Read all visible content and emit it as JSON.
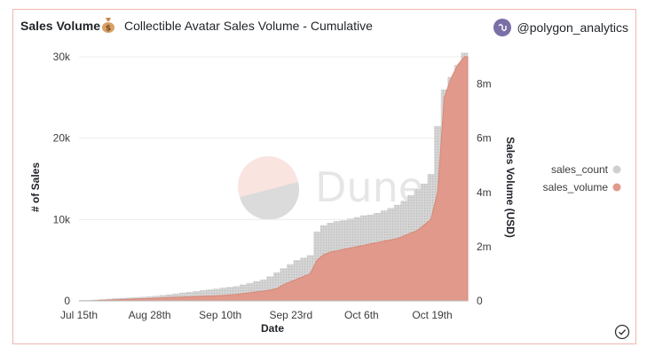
{
  "header": {
    "title": "Sales Volume",
    "subtitle": "Collectible Avatar Sales Volume - Cumulative",
    "author": "@polygon_analytics"
  },
  "watermark": "Dune",
  "colors": {
    "sales_count": "#cfcfcf",
    "sales_volume": "#e0998b",
    "border": "#f0b7ae"
  },
  "chart_data": {
    "type": "area",
    "title": "Collectible Avatar Sales Volume - Cumulative",
    "xlabel": "Date",
    "ylabel_left": "# of Sales",
    "ylabel_right": "Sales Volume (USD)",
    "x_ticks": [
      "Jul 15th",
      "Aug 28th",
      "Sep 10th",
      "Sep 23rd",
      "Oct 6th",
      "Oct 19th"
    ],
    "y_left_ticks": [
      "0",
      "10k",
      "20k",
      "30k"
    ],
    "y_left_range": [
      0,
      30000
    ],
    "y_right_ticks": [
      "0",
      "2m",
      "4m",
      "6m",
      "8m"
    ],
    "y_right_range": [
      0,
      9000000
    ],
    "legend_position": "right",
    "series": [
      {
        "name": "sales_count",
        "axis": "left",
        "style": "bar",
        "values": [
          100,
          100,
          150,
          200,
          250,
          300,
          350,
          400,
          450,
          500,
          550,
          600,
          700,
          800,
          900,
          1000,
          1100,
          1200,
          1300,
          1400,
          1500,
          1600,
          1700,
          1800,
          2000,
          2200,
          2400,
          2600,
          3000,
          3500,
          4000,
          4500,
          5000,
          5300,
          5600,
          8500,
          9300,
          9600,
          9800,
          9900,
          10100,
          10300,
          10500,
          10600,
          10800,
          11100,
          11400,
          11800,
          12300,
          13000,
          13700,
          14400,
          15600,
          21500,
          26000,
          27500,
          29000,
          30500
        ]
      },
      {
        "name": "sales_volume",
        "axis": "right",
        "style": "area",
        "values": [
          0,
          0,
          10000,
          20000,
          30000,
          40000,
          50000,
          60000,
          70000,
          80000,
          90000,
          100000,
          110000,
          120000,
          130000,
          140000,
          150000,
          160000,
          170000,
          180000,
          190000,
          200000,
          220000,
          240000,
          270000,
          300000,
          330000,
          360000,
          400000,
          450000,
          600000,
          700000,
          800000,
          900000,
          1000000,
          1500000,
          1700000,
          1800000,
          1850000,
          1900000,
          1950000,
          2000000,
          2050000,
          2100000,
          2150000,
          2200000,
          2250000,
          2300000,
          2400000,
          2500000,
          2600000,
          2800000,
          3000000,
          4000000,
          7500000,
          8200000,
          8700000,
          9000000
        ]
      }
    ]
  }
}
